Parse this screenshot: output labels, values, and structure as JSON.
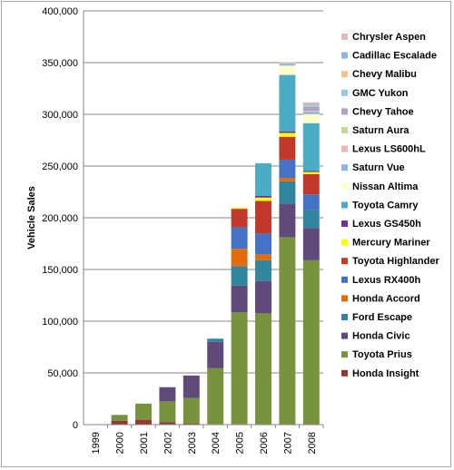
{
  "chart_data": {
    "type": "bar",
    "stacked": true,
    "title": "",
    "xlabel": "",
    "ylabel": "Vehicle Sales",
    "ylim": [
      0,
      400000
    ],
    "yticks": [
      "0",
      "50,000",
      "100,000",
      "150,000",
      "200,000",
      "250,000",
      "300,000",
      "350,000",
      "400,000"
    ],
    "categories": [
      "1999",
      "2000",
      "2001",
      "2002",
      "2003",
      "2004",
      "2005",
      "2006",
      "2007",
      "2008"
    ],
    "grid": true,
    "legend_position": "right",
    "series": [
      {
        "name": "Honda Insight",
        "color": "#943634",
        "values": [
          20,
          3800,
          4700,
          2200,
          1200,
          600,
          650,
          700,
          0,
          0
        ]
      },
      {
        "name": "Toyota Prius",
        "color": "#77933c",
        "values": [
          0,
          5600,
          15600,
          20300,
          24500,
          53900,
          107900,
          106900,
          181200,
          158900
        ]
      },
      {
        "name": "Honda Civic",
        "color": "#604a7b",
        "values": [
          0,
          0,
          0,
          13700,
          21800,
          25600,
          25900,
          31300,
          32600,
          31300
        ]
      },
      {
        "name": "Ford Escape",
        "color": "#31859c",
        "values": [
          0,
          0,
          0,
          0,
          0,
          2993,
          18800,
          20100,
          21400,
          17200
        ]
      },
      {
        "name": "Honda Accord",
        "color": "#e46c0a",
        "values": [
          0,
          0,
          0,
          0,
          0,
          0,
          16800,
          5600,
          3400,
          0
        ]
      },
      {
        "name": "Lexus RX400h",
        "color": "#4472c4",
        "values": [
          0,
          0,
          0,
          0,
          0,
          0,
          20700,
          20200,
          17600,
          15200
        ]
      },
      {
        "name": "Toyota Highlander",
        "color": "#c0392b",
        "values": [
          0,
          0,
          0,
          0,
          0,
          0,
          17900,
          31500,
          22100,
          19500
        ]
      },
      {
        "name": "Mercury Mariner",
        "color": "#ffff00",
        "values": [
          0,
          0,
          0,
          0,
          0,
          0,
          990,
          3200,
          3700,
          2100
        ]
      },
      {
        "name": "Lexus GS450h",
        "color": "#7030a0",
        "values": [
          0,
          0,
          0,
          0,
          0,
          0,
          0,
          1800,
          1600,
          1000
        ]
      },
      {
        "name": "Toyota Camry",
        "color": "#4bacc6",
        "values": [
          0,
          0,
          0,
          0,
          0,
          0,
          0,
          31300,
          54500,
          46300
        ]
      },
      {
        "name": "Nissan Altima",
        "color": "#ffffcc",
        "values": [
          0,
          0,
          0,
          0,
          0,
          0,
          0,
          0,
          9000,
          8800
        ]
      },
      {
        "name": "Saturn Vue",
        "color": "#8eb4e3",
        "values": [
          0,
          0,
          0,
          0,
          0,
          0,
          0,
          0,
          1700,
          2100
        ]
      },
      {
        "name": "Lexus LS600hL",
        "color": "#e6b9b8",
        "values": [
          0,
          0,
          0,
          0,
          0,
          0,
          0,
          0,
          900,
          250
        ]
      },
      {
        "name": "Saturn Aura",
        "color": "#c3d69b",
        "values": [
          0,
          0,
          0,
          0,
          0,
          0,
          0,
          0,
          800,
          700
        ]
      },
      {
        "name": "Chevy Tahoe",
        "color": "#b3a2c7",
        "values": [
          0,
          0,
          0,
          0,
          0,
          0,
          0,
          0,
          0,
          3700
        ]
      },
      {
        "name": "GMC Yukon",
        "color": "#93cddd",
        "values": [
          0,
          0,
          0,
          0,
          0,
          0,
          0,
          0,
          0,
          1600
        ]
      },
      {
        "name": "Chevy Malibu",
        "color": "#fac090",
        "values": [
          0,
          0,
          0,
          0,
          0,
          0,
          0,
          0,
          0,
          400
        ]
      },
      {
        "name": "Cadillac Escalade",
        "color": "#95b3d7",
        "values": [
          0,
          0,
          0,
          0,
          0,
          0,
          0,
          0,
          0,
          1000
        ]
      },
      {
        "name": "Chrysler Aspen",
        "color": "#e6b9b8",
        "values": [
          0,
          0,
          0,
          0,
          0,
          0,
          0,
          0,
          0,
          1500
        ]
      }
    ]
  }
}
